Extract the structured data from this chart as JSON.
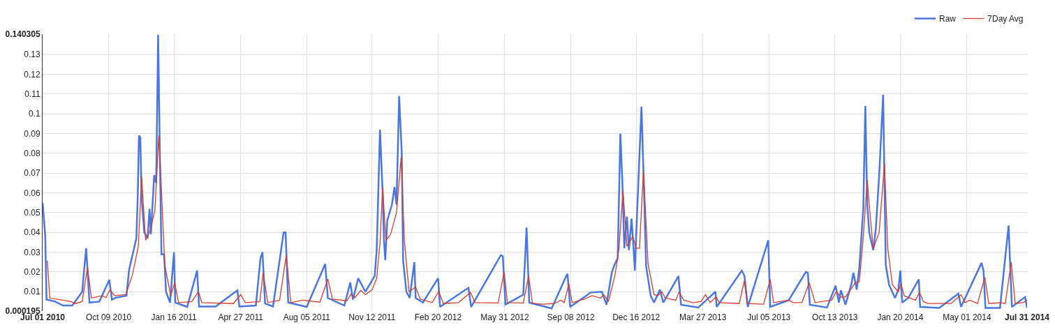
{
  "chart_data": {
    "type": "line",
    "xlim": [
      "2010-07-01",
      "2014-07-31"
    ],
    "xticks": [
      {
        "value": "2010-07-01",
        "label": "Jul 01 2010"
      },
      {
        "value": "2010-10-09",
        "label": "Oct 09 2010"
      },
      {
        "value": "2011-01-16",
        "label": "Jan 16 2011"
      },
      {
        "value": "2011-04-27",
        "label": "Apr 27 2011"
      },
      {
        "value": "2011-08-05",
        "label": "Aug 05 2011"
      },
      {
        "value": "2011-11-12",
        "label": "Nov 12 2011"
      },
      {
        "value": "2012-02-20",
        "label": "Feb 20 2012"
      },
      {
        "value": "2012-05-31",
        "label": "May 31 2012"
      },
      {
        "value": "2012-09-08",
        "label": "Sep 08 2012"
      },
      {
        "value": "2012-12-16",
        "label": "Dec 16 2012"
      },
      {
        "value": "2013-03-27",
        "label": "Mar 27 2013"
      },
      {
        "value": "2013-07-05",
        "label": "Jul 05 2013"
      },
      {
        "value": "2013-10-13",
        "label": "Oct 13 2013"
      },
      {
        "value": "2014-01-20",
        "label": "Jan 20 2014"
      },
      {
        "value": "2014-05-01",
        "label": "May 01 2014"
      },
      {
        "value": "2014-07-31",
        "label": "Jul 31 2014"
      }
    ],
    "ylim": [
      0.000195,
      0.140305
    ],
    "yticks": [
      0.000195,
      0.01,
      0.02,
      0.03,
      0.04,
      0.05,
      0.06,
      0.07,
      0.08,
      0.09,
      0.1,
      0.11,
      0.12,
      0.13,
      0.140305
    ],
    "grid": true,
    "legend": "top right",
    "series": [
      {
        "name": "Raw",
        "color": "#4a76e0",
        "x": [
          "2010-07-01",
          "2010-07-03",
          "2010-07-05",
          "2010-07-07",
          "2010-07-20",
          "2010-08-01",
          "2010-08-15",
          "2010-08-30",
          "2010-09-03",
          "2010-09-05",
          "2010-09-10",
          "2010-09-25",
          "2010-10-10",
          "2010-10-14",
          "2010-10-20",
          "2010-11-05",
          "2010-11-09",
          "2010-11-20",
          "2010-11-22",
          "2010-11-24",
          "2010-11-26",
          "2010-11-28",
          "2010-12-02",
          "2010-12-07",
          "2010-12-10",
          "2010-12-12",
          "2010-12-17",
          "2010-12-20",
          "2010-12-23",
          "2010-12-26",
          "2010-12-28",
          "2011-01-01",
          "2011-01-04",
          "2011-01-10",
          "2011-01-16",
          "2011-01-18",
          "2011-02-05",
          "2011-02-20",
          "2011-02-23",
          "2011-03-20",
          "2011-04-22",
          "2011-04-25",
          "2011-05-20",
          "2011-05-27",
          "2011-05-30",
          "2011-06-03",
          "2011-06-15",
          "2011-07-01",
          "2011-07-04",
          "2011-07-08",
          "2011-08-05",
          "2011-09-02",
          "2011-09-06",
          "2011-10-01",
          "2011-10-10",
          "2011-10-14",
          "2011-10-22",
          "2011-11-02",
          "2011-11-16",
          "2011-11-19",
          "2011-11-24",
          "2011-11-28",
          "2011-11-30",
          "2011-12-02",
          "2011-12-05",
          "2011-12-12",
          "2011-12-16",
          "2011-12-19",
          "2011-12-23",
          "2011-12-27",
          "2011-12-29",
          "2012-01-03",
          "2012-01-08",
          "2012-01-15",
          "2012-01-17",
          "2012-01-28",
          "2012-02-20",
          "2012-02-23",
          "2012-04-06",
          "2012-04-10",
          "2012-05-25",
          "2012-05-28",
          "2012-06-01",
          "2012-06-28",
          "2012-07-03",
          "2012-07-07",
          "2012-08-10",
          "2012-09-01",
          "2012-09-03",
          "2012-09-07",
          "2012-10-01",
          "2012-10-08",
          "2012-10-25",
          "2012-11-01",
          "2012-11-09",
          "2012-11-13",
          "2012-11-18",
          "2012-11-22",
          "2012-11-25",
          "2012-11-28",
          "2012-12-02",
          "2012-12-05",
          "2012-12-09",
          "2012-12-12",
          "2012-12-14",
          "2012-12-17",
          "2012-12-24",
          "2012-12-28",
          "2012-12-31",
          "2013-01-07",
          "2013-01-12",
          "2013-01-21",
          "2013-01-26",
          "2013-02-18",
          "2013-02-22",
          "2013-03-20",
          "2013-04-15",
          "2013-04-17",
          "2013-05-25",
          "2013-05-29",
          "2013-06-03",
          "2013-07-04",
          "2013-07-07",
          "2013-08-04",
          "2013-08-30",
          "2013-09-02",
          "2013-09-05",
          "2013-10-01",
          "2013-10-14",
          "2013-10-19",
          "2013-10-22",
          "2013-10-29",
          "2013-11-07",
          "2013-11-10",
          "2013-11-15",
          "2013-11-19",
          "2013-11-25",
          "2013-11-28",
          "2013-12-01",
          "2013-12-04",
          "2013-12-10",
          "2013-12-14",
          "2013-12-19",
          "2013-12-25",
          "2013-12-29",
          "2014-01-03",
          "2014-01-12",
          "2014-01-17",
          "2014-01-20",
          "2014-01-23",
          "2014-02-01",
          "2014-02-17",
          "2014-02-19",
          "2014-03-20",
          "2014-04-18",
          "2014-04-22",
          "2014-05-23",
          "2014-05-26",
          "2014-05-29",
          "2014-06-20",
          "2014-07-03",
          "2014-07-08",
          "2014-07-28",
          "2014-07-31"
        ],
        "values": [
          0.055,
          0.047,
          0.038,
          0.006,
          0.005,
          0.003,
          0.003,
          0.01,
          0.025,
          0.032,
          0.0045,
          0.005,
          0.016,
          0.006,
          0.007,
          0.008,
          0.021,
          0.037,
          0.057,
          0.089,
          0.088,
          0.057,
          0.04,
          0.037,
          0.052,
          0.039,
          0.069,
          0.065,
          0.14,
          0.071,
          0.029,
          0.029,
          0.01,
          0.0045,
          0.03,
          0.0045,
          0.0023,
          0.0207,
          0.0025,
          0.0025,
          0.0107,
          0.0025,
          0.003,
          0.027,
          0.03,
          0.004,
          0.0025,
          0.04,
          0.04,
          0.0045,
          0.0023,
          0.024,
          0.0068,
          0.003,
          0.0146,
          0.006,
          0.0168,
          0.01,
          0.018,
          0.031,
          0.092,
          0.06,
          0.036,
          0.026,
          0.046,
          0.054,
          0.063,
          0.054,
          0.109,
          0.08,
          0.0257,
          0.01,
          0.0068,
          0.025,
          0.0068,
          0.0045,
          0.0168,
          0.0023,
          0.012,
          0.0023,
          0.0285,
          0.028,
          0.0035,
          0.0085,
          0.0424,
          0.0045,
          0.0015,
          0.0179,
          0.019,
          0.0023,
          0.0079,
          0.0096,
          0.01,
          0.0034,
          0.0196,
          0.0235,
          0.027,
          0.09,
          0.066,
          0.032,
          0.048,
          0.031,
          0.047,
          0.032,
          0.0207,
          0.047,
          0.1036,
          0.06,
          0.023,
          0.0079,
          0.0045,
          0.011,
          0.0045,
          0.0179,
          0.0034,
          0.002,
          0.01,
          0.0023,
          0.0207,
          0.018,
          0.0023,
          0.036,
          0.0023,
          0.0057,
          0.02,
          0.0196,
          0.0034,
          0.002,
          0.013,
          0.0045,
          0.0107,
          0.0034,
          0.014,
          0.0196,
          0.011,
          0.0224,
          0.0524,
          0.104,
          0.0535,
          0.04,
          0.031,
          0.042,
          0.069,
          0.1097,
          0.0235,
          0.0135,
          0.0068,
          0.011,
          0.0207,
          0.0045,
          0.0068,
          0.0162,
          0.0023,
          0.0018,
          0.009,
          0.0023,
          0.0246,
          0.0207,
          0.0018,
          0.0018,
          0.0435,
          0.0023,
          0.0073,
          0.0018
        ]
      },
      {
        "name": "7Day Avg",
        "color": "#d63b2f",
        "x": [
          "2010-07-08",
          "2010-07-12",
          "2010-08-13",
          "2010-08-20",
          "2010-08-30",
          "2010-09-07",
          "2010-09-13",
          "2010-09-29",
          "2010-10-05",
          "2010-10-11",
          "2010-10-18",
          "2010-11-04",
          "2010-11-14",
          "2010-11-23",
          "2010-11-28",
          "2010-12-04",
          "2010-12-11",
          "2010-12-18",
          "2010-12-24",
          "2010-12-27",
          "2011-01-02",
          "2011-01-11",
          "2011-01-17",
          "2011-01-23",
          "2011-02-12",
          "2011-02-22",
          "2011-02-27",
          "2011-04-16",
          "2011-04-27",
          "2011-05-04",
          "2011-05-26",
          "2011-05-31",
          "2011-06-07",
          "2011-06-25",
          "2011-07-05",
          "2011-07-12",
          "2011-07-30",
          "2011-08-25",
          "2011-09-06",
          "2011-09-13",
          "2011-10-05",
          "2011-10-11",
          "2011-10-17",
          "2011-10-26",
          "2011-11-02",
          "2011-11-12",
          "2011-11-19",
          "2011-11-24",
          "2011-11-28",
          "2011-12-03",
          "2011-12-10",
          "2011-12-19",
          "2011-12-26",
          "2011-12-31",
          "2012-01-07",
          "2012-01-17",
          "2012-01-24",
          "2012-02-11",
          "2012-02-21",
          "2012-02-28",
          "2012-03-22",
          "2012-04-09",
          "2012-04-16",
          "2012-05-21",
          "2012-05-30",
          "2012-06-04",
          "2012-06-28",
          "2012-07-06",
          "2012-07-12",
          "2012-07-29",
          "2012-08-14",
          "2012-08-24",
          "2012-08-29",
          "2012-09-05",
          "2012-09-10",
          "2012-09-28",
          "2012-10-10",
          "2012-10-23",
          "2012-10-28",
          "2012-11-04",
          "2012-11-14",
          "2012-11-20",
          "2012-11-26",
          "2012-12-02",
          "2012-12-11",
          "2012-12-16",
          "2012-12-21",
          "2012-12-27",
          "2013-01-03",
          "2013-01-12",
          "2013-01-18",
          "2013-01-24",
          "2013-01-29",
          "2013-02-14",
          "2013-02-19",
          "2013-02-26",
          "2013-03-12",
          "2013-03-24",
          "2013-03-31",
          "2013-04-07",
          "2013-04-16",
          "2013-04-21",
          "2013-05-21",
          "2013-05-29",
          "2013-06-02",
          "2013-06-27",
          "2013-07-07",
          "2013-07-12",
          "2013-08-04",
          "2013-08-11",
          "2013-08-24",
          "2013-09-04",
          "2013-09-13",
          "2013-10-08",
          "2013-10-15",
          "2013-10-22",
          "2013-10-29",
          "2013-11-13",
          "2013-11-19",
          "2013-11-25",
          "2013-12-01",
          "2013-12-04",
          "2013-12-10",
          "2013-12-19",
          "2013-12-27",
          "2014-01-01",
          "2014-01-08",
          "2014-01-17",
          "2014-01-21",
          "2014-01-26",
          "2014-02-04",
          "2014-02-12",
          "2014-02-18",
          "2014-02-24",
          "2014-03-03",
          "2014-04-07",
          "2014-04-22",
          "2014-04-28",
          "2014-05-05",
          "2014-05-17",
          "2014-05-28",
          "2014-06-03",
          "2014-06-21",
          "2014-06-28",
          "2014-07-07",
          "2014-07-13",
          "2014-07-25",
          "2014-07-31"
        ],
        "values": [
          0.0257,
          0.0068,
          0.005,
          0.004,
          0.005,
          0.0224,
          0.0068,
          0.008,
          0.007,
          0.011,
          0.008,
          0.0085,
          0.0185,
          0.033,
          0.068,
          0.036,
          0.041,
          0.051,
          0.089,
          0.069,
          0.0235,
          0.008,
          0.0145,
          0.0045,
          0.005,
          0.01,
          0.0045,
          0.004,
          0.0085,
          0.0045,
          0.005,
          0.0196,
          0.0045,
          0.0057,
          0.0285,
          0.0045,
          0.0057,
          0.0047,
          0.0164,
          0.0062,
          0.0054,
          0.0088,
          0.007,
          0.0107,
          0.0085,
          0.011,
          0.0168,
          0.0346,
          0.063,
          0.036,
          0.039,
          0.05,
          0.078,
          0.0357,
          0.0101,
          0.0123,
          0.0062,
          0.0045,
          0.0101,
          0.004,
          0.0045,
          0.0096,
          0.0045,
          0.0043,
          0.02,
          0.0045,
          0.0043,
          0.0179,
          0.004,
          0.0037,
          0.004,
          0.0057,
          0.0045,
          0.014,
          0.0045,
          0.0062,
          0.008,
          0.0068,
          0.0085,
          0.005,
          0.0185,
          0.032,
          0.061,
          0.033,
          0.038,
          0.032,
          0.032,
          0.0713,
          0.024,
          0.0085,
          0.008,
          0.01,
          0.0068,
          0.0057,
          0.01,
          0.0057,
          0.0045,
          0.005,
          0.0085,
          0.0045,
          0.0073,
          0.0045,
          0.004,
          0.0157,
          0.004,
          0.0037,
          0.0162,
          0.0045,
          0.0057,
          0.0045,
          0.0045,
          0.0146,
          0.0045,
          0.0057,
          0.01,
          0.0073,
          0.0073,
          0.0146,
          0.015,
          0.038,
          0.0665,
          0.054,
          0.0318,
          0.04,
          0.075,
          0.032,
          0.0135,
          0.01,
          0.014,
          0.0079,
          0.0068,
          0.0057,
          0.0096,
          0.005,
          0.004,
          0.004,
          0.0085,
          0.0045,
          0.0057,
          0.004,
          0.0173,
          0.004,
          0.0045,
          0.004,
          0.025,
          0.004,
          0.0045,
          0.0057
        ]
      }
    ]
  }
}
